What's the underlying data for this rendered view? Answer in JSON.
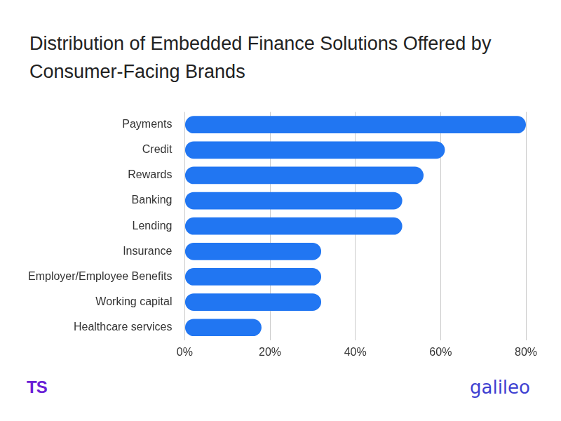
{
  "chart_data": {
    "type": "bar",
    "title": "Distribution of Embedded Finance Solutions Offered by Consumer-Facing Brands",
    "orientation": "horizontal",
    "categories": [
      "Payments",
      "Credit",
      "Rewards",
      "Banking",
      "Lending",
      "Insurance",
      "Employer/Employee Benefits",
      "Working capital",
      "Healthcare services"
    ],
    "values": [
      80,
      61,
      56,
      51,
      51,
      32,
      32,
      32,
      18
    ],
    "color": "#2176f2",
    "xlim": [
      0,
      80
    ],
    "xticks": [
      {
        "value": 0,
        "label": "0%"
      },
      {
        "value": 20,
        "label": "20%"
      },
      {
        "value": 40,
        "label": "40%"
      },
      {
        "value": 60,
        "label": "60%"
      },
      {
        "value": 80,
        "label": "80%"
      }
    ],
    "grid": true,
    "annotations": [
      "TS",
      "galileo"
    ]
  }
}
